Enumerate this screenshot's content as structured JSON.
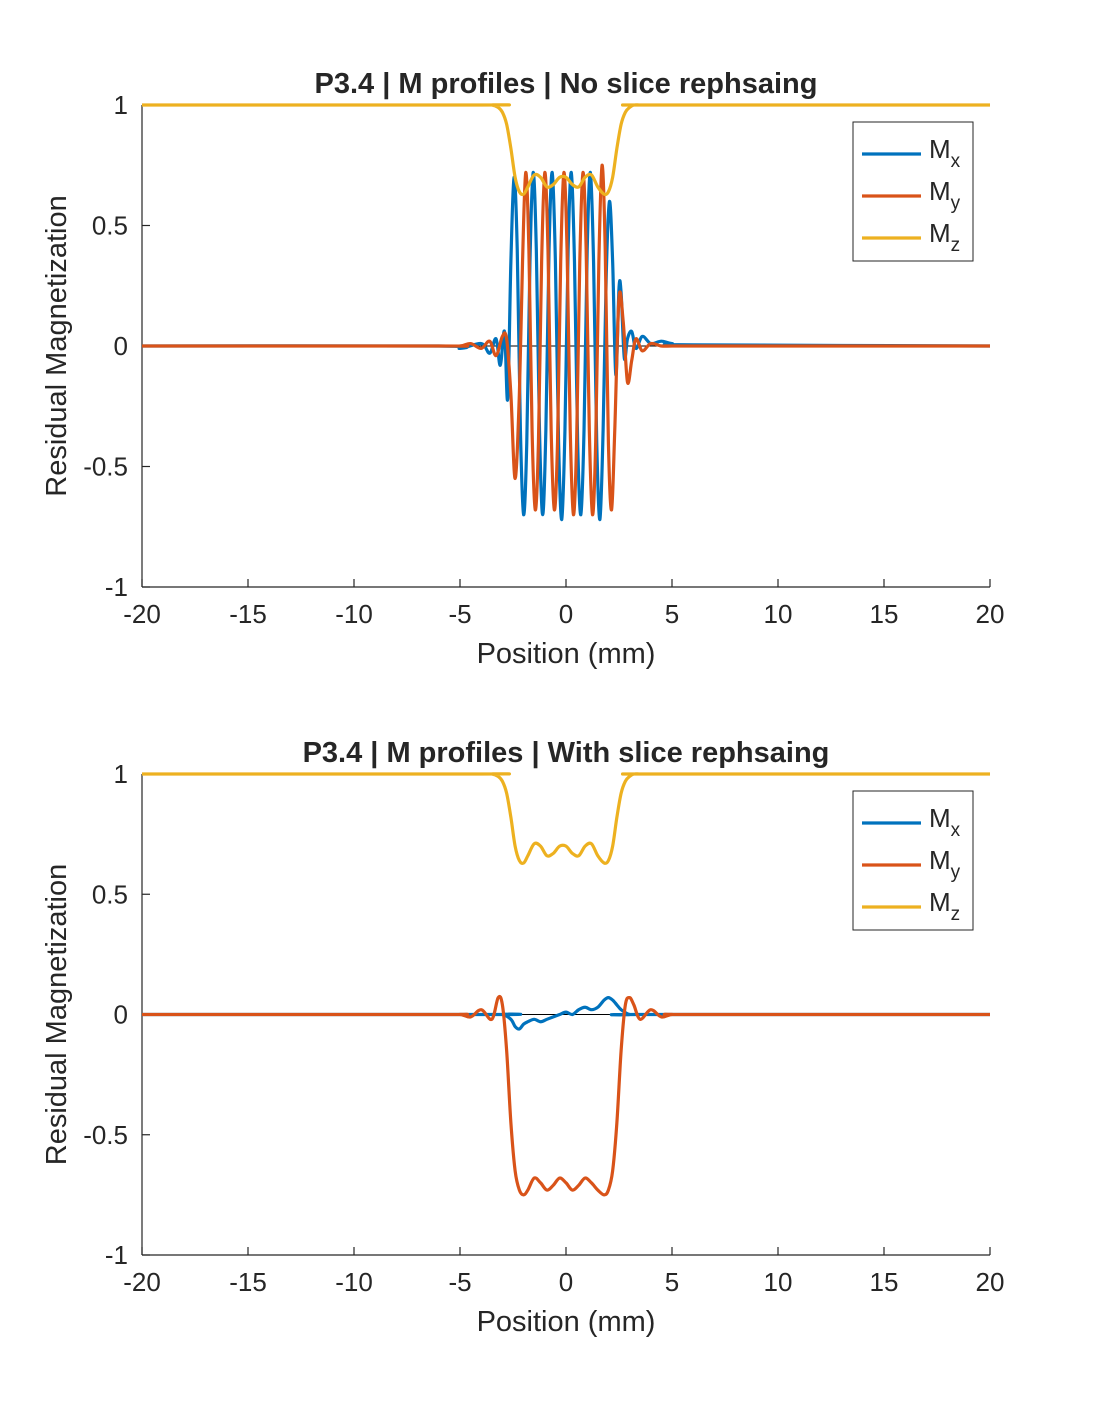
{
  "chart_data": [
    {
      "type": "line",
      "title": "P3.4 | M profiles | No slice rephsaing",
      "xlabel": "Position (mm)",
      "ylabel": "Residual Magnetization",
      "xlim": [
        -20,
        20
      ],
      "ylim": [
        -1,
        1
      ],
      "xticks": [
        "-20",
        "-15",
        "-10",
        "-5",
        "0",
        "5",
        "10",
        "15",
        "20"
      ],
      "yticks": [
        "1",
        "0.5",
        "0",
        "-0.5",
        "-1"
      ],
      "grid": false,
      "legend_location": "top-right",
      "zero_line": true,
      "series": [
        {
          "name": "M_x",
          "name_main": "M",
          "name_sub": "x",
          "color": "#0072BD",
          "x": [
            -20,
            -6,
            -5,
            -4,
            -3.6,
            -3.3,
            -3.1,
            -2.9,
            -2.75,
            -2.6,
            -2.45,
            -2.3,
            -2.15,
            -2.0,
            -1.85,
            -1.7,
            -1.55,
            -1.4,
            -1.25,
            -1.1,
            -0.95,
            -0.8,
            -0.65,
            -0.5,
            -0.35,
            -0.2,
            -0.05,
            0.1,
            0.25,
            0.4,
            0.55,
            0.7,
            0.85,
            1.0,
            1.15,
            1.3,
            1.45,
            1.6,
            1.75,
            1.9,
            2.05,
            2.2,
            2.35,
            2.5,
            2.6,
            2.75,
            2.9,
            3.1,
            3.3,
            3.6,
            4.0,
            4.5,
            5,
            6,
            20
          ],
          "y": [
            0.0,
            0.0,
            -0.01,
            0.01,
            -0.03,
            0.03,
            -0.08,
            0.06,
            -0.22,
            0.35,
            0.7,
            0.4,
            -0.35,
            -0.7,
            -0.4,
            0.35,
            0.72,
            0.4,
            -0.35,
            -0.7,
            -0.35,
            0.4,
            0.72,
            0.35,
            -0.4,
            -0.72,
            -0.35,
            0.4,
            0.72,
            0.35,
            -0.4,
            -0.7,
            -0.35,
            0.4,
            0.72,
            0.35,
            -0.4,
            -0.72,
            -0.35,
            0.3,
            0.6,
            0.35,
            -0.12,
            0.24,
            0.22,
            -0.05,
            0.03,
            0.06,
            -0.01,
            0.04,
            0.01,
            0.02,
            0.01,
            0.005,
            0.0
          ]
        },
        {
          "name": "M_y",
          "name_main": "M",
          "name_sub": "y",
          "color": "#D95319",
          "x": [
            -20,
            -6,
            -5,
            -4.5,
            -4,
            -3.6,
            -3.3,
            -3.0,
            -2.8,
            -2.6,
            -2.4,
            -2.2,
            -2.05,
            -1.9,
            -1.75,
            -1.6,
            -1.45,
            -1.3,
            -1.15,
            -1.0,
            -0.85,
            -0.7,
            -0.55,
            -0.4,
            -0.25,
            -0.1,
            0.05,
            0.2,
            0.35,
            0.5,
            0.65,
            0.8,
            0.95,
            1.1,
            1.25,
            1.4,
            1.55,
            1.7,
            1.85,
            2.0,
            2.15,
            2.3,
            2.5,
            2.7,
            2.9,
            3.1,
            3.3,
            3.6,
            4.0,
            4.5,
            5,
            6,
            20
          ],
          "y": [
            0.0,
            0.0,
            0.0,
            0.01,
            -0.01,
            0.02,
            -0.04,
            0.04,
            0.03,
            -0.2,
            -0.55,
            -0.2,
            0.35,
            0.72,
            0.4,
            -0.35,
            -0.68,
            -0.4,
            0.35,
            0.72,
            0.4,
            -0.35,
            -0.68,
            -0.4,
            0.35,
            0.72,
            0.4,
            -0.35,
            -0.7,
            -0.4,
            0.35,
            0.72,
            0.4,
            -0.35,
            -0.7,
            -0.4,
            0.35,
            0.75,
            0.4,
            -0.4,
            -0.68,
            -0.35,
            0.2,
            0.1,
            -0.15,
            -0.06,
            0.03,
            -0.02,
            0.01,
            0.0,
            0.0,
            0.0,
            0.0
          ]
        },
        {
          "name": "M_z",
          "name_main": "M",
          "name_sub": "z",
          "color": "#EDB120",
          "x": [
            -20,
            -4.0,
            -3.5,
            -3.2,
            -3.0,
            -2.8,
            -2.6,
            -2.4,
            -2.2,
            -2.0,
            -1.8,
            -1.5,
            -1.2,
            -0.9,
            -0.6,
            -0.3,
            0,
            0.3,
            0.6,
            0.9,
            1.2,
            1.5,
            1.8,
            2.0,
            2.2,
            2.4,
            2.6,
            2.8,
            3.0,
            3.2,
            3.5,
            4.0,
            20
          ],
          "y": [
            1.0,
            1.0,
            1.0,
            0.99,
            0.97,
            0.92,
            0.82,
            0.7,
            0.64,
            0.63,
            0.66,
            0.71,
            0.7,
            0.66,
            0.67,
            0.7,
            0.7,
            0.67,
            0.66,
            0.7,
            0.71,
            0.66,
            0.63,
            0.64,
            0.7,
            0.82,
            0.92,
            0.97,
            0.99,
            1.0,
            1.0,
            1.0,
            1.0
          ]
        }
      ]
    },
    {
      "type": "line",
      "title": "P3.4 | M profiles | With slice rephsaing",
      "xlabel": "Position (mm)",
      "ylabel": "Residual Magnetization",
      "xlim": [
        -20,
        20
      ],
      "ylim": [
        -1,
        1
      ],
      "xticks": [
        "-20",
        "-15",
        "-10",
        "-5",
        "0",
        "5",
        "10",
        "15",
        "20"
      ],
      "yticks": [
        "1",
        "0.5",
        "0",
        "-0.5",
        "-1"
      ],
      "grid": false,
      "legend_location": "top-right",
      "zero_line": true,
      "series": [
        {
          "name": "M_x",
          "name_main": "M",
          "name_sub": "x",
          "color": "#0072BD",
          "x": [
            -20,
            -3.5,
            -3.0,
            -2.6,
            -2.4,
            -2.2,
            -2.0,
            -1.8,
            -1.5,
            -1.2,
            -0.9,
            -0.6,
            -0.3,
            0,
            0.3,
            0.6,
            0.9,
            1.2,
            1.5,
            1.8,
            2.0,
            2.2,
            2.4,
            2.6,
            3.0,
            3.5,
            20
          ],
          "y": [
            0.0,
            0.0,
            0.0,
            -0.02,
            -0.05,
            -0.06,
            -0.04,
            -0.03,
            -0.02,
            -0.03,
            -0.02,
            -0.01,
            0.0,
            0.01,
            0.0,
            0.02,
            0.03,
            0.02,
            0.03,
            0.06,
            0.07,
            0.06,
            0.04,
            0.02,
            0.0,
            0.0,
            0.0
          ]
        },
        {
          "name": "M_y",
          "name_main": "M",
          "name_sub": "y",
          "color": "#D95319",
          "x": [
            -20,
            -6.0,
            -5.0,
            -4.5,
            -4.0,
            -3.5,
            -3.2,
            -3.0,
            -2.8,
            -2.6,
            -2.4,
            -2.2,
            -2.0,
            -1.8,
            -1.5,
            -1.2,
            -0.9,
            -0.6,
            -0.3,
            0,
            0.3,
            0.6,
            0.9,
            1.2,
            1.5,
            1.8,
            2.0,
            2.2,
            2.4,
            2.6,
            2.8,
            3.0,
            3.2,
            3.5,
            4.0,
            4.5,
            5.0,
            6.0,
            20
          ],
          "y": [
            0.0,
            0.0,
            0.0,
            -0.01,
            0.02,
            -0.02,
            0.07,
            0.04,
            -0.15,
            -0.45,
            -0.65,
            -0.73,
            -0.75,
            -0.73,
            -0.68,
            -0.7,
            -0.73,
            -0.71,
            -0.68,
            -0.7,
            -0.73,
            -0.71,
            -0.68,
            -0.7,
            -0.73,
            -0.75,
            -0.73,
            -0.65,
            -0.45,
            -0.15,
            0.04,
            0.07,
            0.04,
            -0.02,
            0.02,
            -0.01,
            0.0,
            0.0,
            0.0
          ]
        },
        {
          "name": "M_z",
          "name_main": "M",
          "name_sub": "z",
          "color": "#EDB120",
          "x": [
            -20,
            -4.0,
            -3.5,
            -3.2,
            -3.0,
            -2.8,
            -2.6,
            -2.4,
            -2.2,
            -2.0,
            -1.8,
            -1.5,
            -1.2,
            -0.9,
            -0.6,
            -0.3,
            0,
            0.3,
            0.6,
            0.9,
            1.2,
            1.5,
            1.8,
            2.0,
            2.2,
            2.4,
            2.6,
            2.8,
            3.0,
            3.2,
            3.5,
            4.0,
            20
          ],
          "y": [
            1.0,
            1.0,
            1.0,
            0.99,
            0.97,
            0.92,
            0.82,
            0.7,
            0.64,
            0.63,
            0.66,
            0.71,
            0.7,
            0.66,
            0.67,
            0.7,
            0.7,
            0.67,
            0.66,
            0.7,
            0.71,
            0.66,
            0.63,
            0.64,
            0.7,
            0.82,
            0.92,
            0.97,
            0.99,
            1.0,
            1.0,
            1.0,
            1.0
          ]
        }
      ]
    }
  ]
}
